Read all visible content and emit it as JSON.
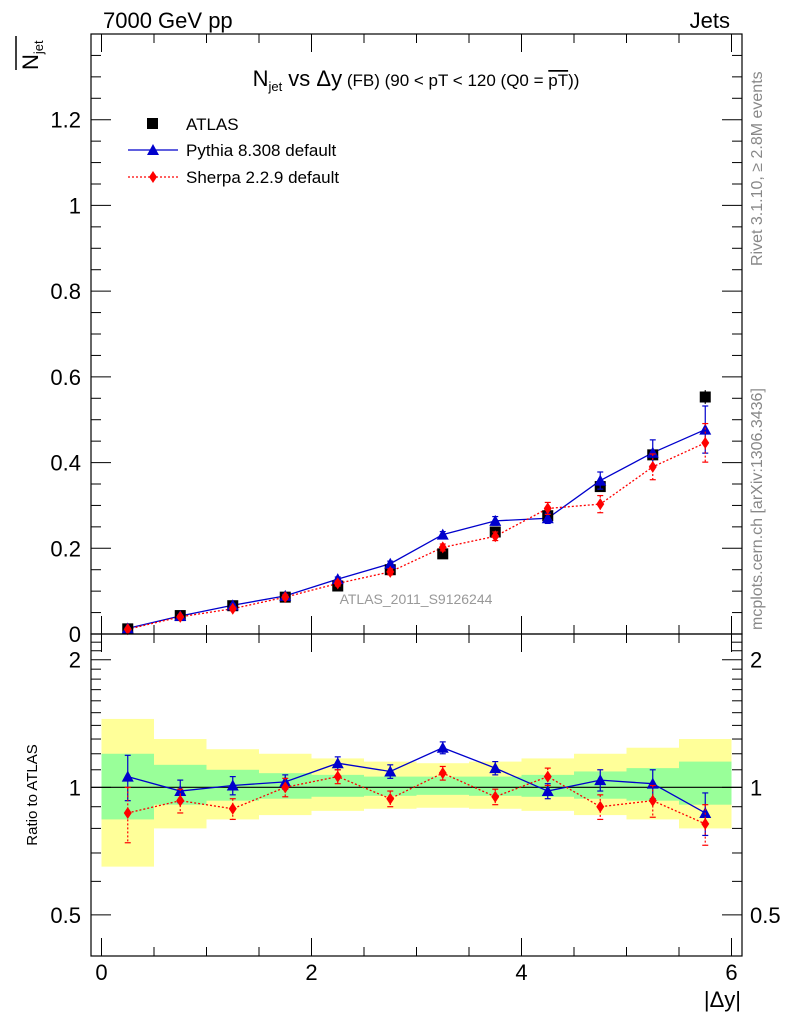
{
  "header": {
    "energy_label": "7000 GeV pp",
    "category_label": "Jets"
  },
  "side_labels": {
    "rivet": "Rivet 3.1.10, ≥ 2.8M events",
    "mcplots": "mcplots.cern.ch [arXiv:1306.3436]"
  },
  "watermark": "ATLAS_2011_S9126244",
  "colors": {
    "atlas": "#000000",
    "pythia": "#0000cc",
    "sherpa": "#ff0000",
    "band_inner": "#99ff99",
    "band_outer": "#ffff99"
  },
  "chart_data": [
    {
      "type": "scatter",
      "panel": "main",
      "title_main": "N",
      "title_main_sub": "jet",
      "title_main_rest": " vs Δy",
      "title_small": " (FB) (90 < pT < 120 (Q0 = ",
      "title_overline": "pT",
      "title_end": "))",
      "ylabel_main": "N",
      "ylabel_sub": "jet",
      "ylim": [
        0,
        1.4
      ],
      "xlim": [
        -0.1,
        6.1
      ],
      "y_ticks": [
        0,
        0.2,
        0.4,
        0.6,
        0.8,
        1,
        1.2
      ],
      "y_tick_labels": [
        "0",
        "0.2",
        "0.4",
        "0.6",
        "0.8",
        "1",
        "1.2"
      ],
      "legend_position": "top-left",
      "x": [
        0.25,
        0.75,
        1.25,
        1.75,
        2.25,
        2.75,
        3.25,
        3.75,
        4.25,
        4.75,
        5.25,
        5.75
      ],
      "series": [
        {
          "name": "ATLAS",
          "marker": "square",
          "values": [
            0.012,
            0.043,
            0.066,
            0.086,
            0.112,
            0.15,
            0.187,
            0.238,
            0.276,
            0.344,
            0.418,
            0.553
          ],
          "errors": [
            0.002,
            0.003,
            0.004,
            0.004,
            0.005,
            0.006,
            0.007,
            0.008,
            0.009,
            0.011,
            0.013,
            0.016
          ]
        },
        {
          "name": "Pythia 8.308 default",
          "marker": "triangle",
          "values": [
            0.013,
            0.042,
            0.067,
            0.089,
            0.128,
            0.164,
            0.232,
            0.264,
            0.27,
            0.358,
            0.423,
            0.477
          ],
          "errors": [
            0.002,
            0.003,
            0.003,
            0.004,
            0.005,
            0.006,
            0.007,
            0.01,
            0.012,
            0.02,
            0.03,
            0.055
          ]
        },
        {
          "name": "Sherpa 2.2.9 default",
          "marker": "diamond",
          "values": [
            0.011,
            0.04,
            0.059,
            0.086,
            0.118,
            0.145,
            0.202,
            0.228,
            0.293,
            0.303,
            0.39,
            0.446
          ],
          "errors": [
            0.002,
            0.003,
            0.004,
            0.005,
            0.006,
            0.007,
            0.008,
            0.01,
            0.014,
            0.02,
            0.03,
            0.045
          ]
        }
      ]
    },
    {
      "type": "scatter",
      "panel": "ratio",
      "ylabel": "Ratio to ATLAS",
      "xlabel": "|Δy|",
      "ylim": [
        0.4,
        2.3
      ],
      "y_ticks": [
        0.5,
        1,
        2
      ],
      "y_tick_labels": [
        "0.5",
        "1",
        "2"
      ],
      "x_ticks": [
        0,
        2,
        4,
        6
      ],
      "x_tick_labels": [
        "0",
        "2",
        "4",
        "6"
      ],
      "bin_edges": [
        0,
        0.5,
        1,
        1.5,
        2,
        2.5,
        3,
        3.5,
        4,
        4.5,
        5,
        5.5,
        6
      ],
      "band_inner": [
        [
          0.84,
          1.2
        ],
        [
          0.91,
          1.13
        ],
        [
          0.93,
          1.1
        ],
        [
          0.94,
          1.08
        ],
        [
          0.95,
          1.07
        ],
        [
          0.955,
          1.06
        ],
        [
          0.96,
          1.06
        ],
        [
          0.955,
          1.06
        ],
        [
          0.95,
          1.07
        ],
        [
          0.94,
          1.09
        ],
        [
          0.93,
          1.11
        ],
        [
          0.91,
          1.15
        ]
      ],
      "band_outer": [
        [
          0.65,
          1.45
        ],
        [
          0.8,
          1.3
        ],
        [
          0.84,
          1.23
        ],
        [
          0.86,
          1.2
        ],
        [
          0.88,
          1.17
        ],
        [
          0.89,
          1.15
        ],
        [
          0.895,
          1.14
        ],
        [
          0.89,
          1.15
        ],
        [
          0.88,
          1.17
        ],
        [
          0.86,
          1.2
        ],
        [
          0.84,
          1.24
        ],
        [
          0.8,
          1.3
        ]
      ],
      "series": [
        {
          "name": "Pythia 8.308 default",
          "values": [
            1.06,
            0.98,
            1.01,
            1.03,
            1.14,
            1.09,
            1.24,
            1.11,
            0.98,
            1.04,
            1.02,
            0.87
          ],
          "errors": [
            0.13,
            0.06,
            0.05,
            0.04,
            0.04,
            0.04,
            0.04,
            0.04,
            0.04,
            0.06,
            0.08,
            0.1
          ]
        },
        {
          "name": "Sherpa 2.2.9 default",
          "values": [
            0.87,
            0.93,
            0.89,
            1.0,
            1.06,
            0.94,
            1.08,
            0.95,
            1.06,
            0.9,
            0.93,
            0.82
          ],
          "errors": [
            0.13,
            0.06,
            0.05,
            0.05,
            0.04,
            0.04,
            0.04,
            0.04,
            0.05,
            0.06,
            0.08,
            0.09
          ]
        }
      ]
    }
  ]
}
